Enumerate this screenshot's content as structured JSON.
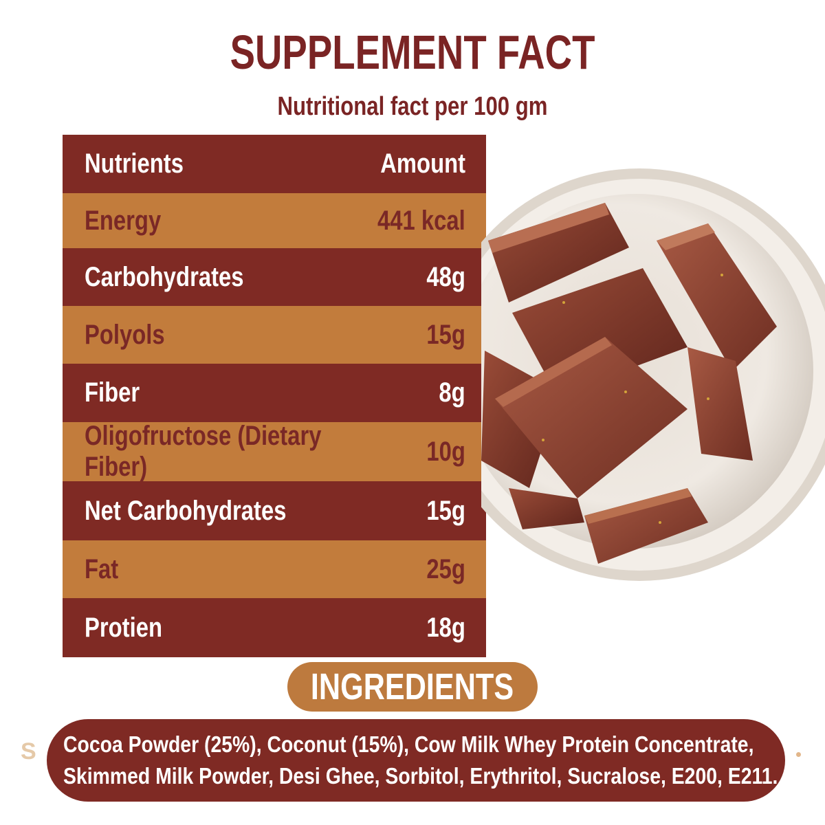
{
  "title": "SUPPLEMENT FACT",
  "subtitle": "Nutritional fact per 100 gm",
  "table": {
    "header": {
      "label": "Nutrients",
      "amount": "Amount"
    },
    "rows": [
      {
        "label": "Energy",
        "amount": "441 kcal"
      },
      {
        "label": "Carbohydrates",
        "amount": "48g"
      },
      {
        "label": "Polyols",
        "amount": "15g"
      },
      {
        "label": "Fiber",
        "amount": "8g"
      },
      {
        "label": "Oligofructose (Dietary Fiber)",
        "amount": "10g"
      },
      {
        "label": "Net Carbohydrates",
        "amount": "15g"
      },
      {
        "label": "Fat",
        "amount": "25g"
      },
      {
        "label": "Protien",
        "amount": "18g"
      }
    ]
  },
  "ingredients": {
    "heading": "INGREDIENTS",
    "line1": "Cocoa Powder (25%), Coconut (15%), Cow Milk Whey Protein Concentrate,",
    "line2": "Skimmed Milk Powder, Desi Ghee, Sorbitol, Erythritol, Sucralose, E200, E211."
  },
  "colors": {
    "dark_maroon": "#7f2a24",
    "caramel": "#c27c3c",
    "title_maroon": "#7a2424",
    "pill_caramel": "#bd7a3e"
  },
  "image": {
    "icon": "chocolate-fudge-bowl-photo"
  }
}
